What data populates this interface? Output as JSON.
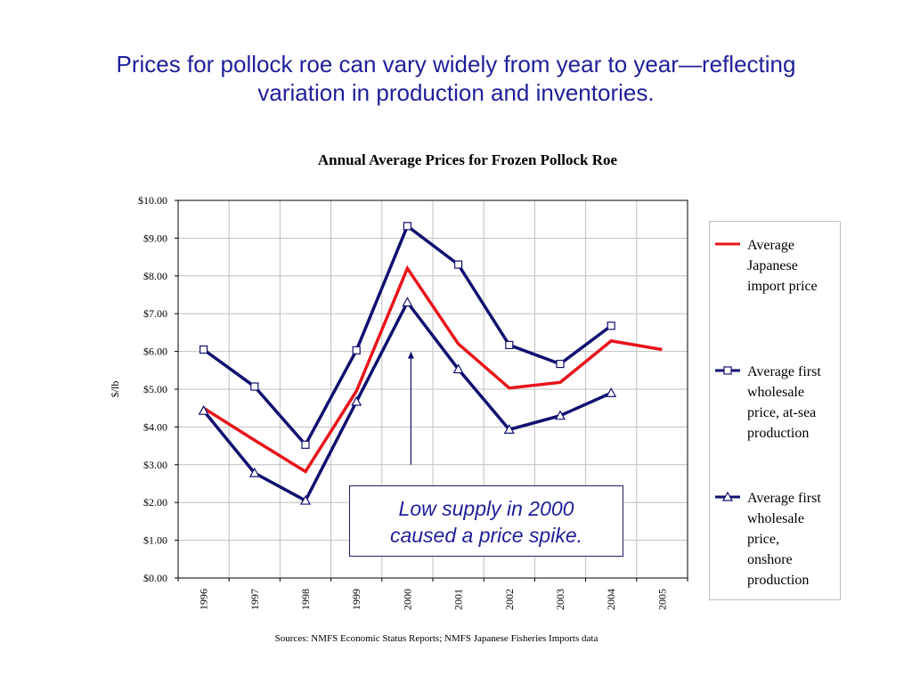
{
  "slide": {
    "title_lines": [
      "Prices for pollock roe can vary widely from year to year—reflecting",
      "variation in production and inventories."
    ],
    "callout_lines": [
      "Low supply in 2000",
      "caused a price spike."
    ],
    "sources": "Sources: NMFS  Economic Status Reports; NMFS Japanese Fisheries Imports data"
  },
  "colors": {
    "red": "#e8141b",
    "navy": "#101070",
    "title": "#1f1f99",
    "grid": "#c0c0c0"
  },
  "chart_data": {
    "type": "line",
    "title": "Annual Average Prices for Frozen Pollock Roe",
    "xlabel": "",
    "ylabel": "$/lb",
    "categories": [
      "1996",
      "1997",
      "1998",
      "1999",
      "2000",
      "2001",
      "2002",
      "2003",
      "2004",
      "2005"
    ],
    "ylim": [
      0,
      10
    ],
    "yticks": [
      "$0.00",
      "$1.00",
      "$2.00",
      "$3.00",
      "$4.00",
      "$5.00",
      "$6.00",
      "$7.00",
      "$8.00",
      "$9.00",
      "$10.00"
    ],
    "grid": true,
    "legend_position": "right",
    "series": [
      {
        "name": "Average Japanese import price",
        "legend_lines": [
          "Average",
          "Japanese",
          "import price"
        ],
        "color": "#e8141b",
        "marker": "none",
        "values": [
          4.5,
          3.65,
          2.82,
          4.95,
          8.2,
          6.2,
          5.03,
          5.18,
          6.28,
          6.05
        ]
      },
      {
        "name": "Average first wholesale price, at-sea production",
        "legend_lines": [
          "Average first",
          "wholesale",
          "price, at-sea",
          "production"
        ],
        "color": "#101070",
        "marker": "square",
        "values": [
          6.05,
          5.07,
          3.53,
          6.03,
          9.32,
          8.3,
          6.17,
          5.67,
          6.68,
          null
        ]
      },
      {
        "name": "Average first wholesale price, onshore production",
        "legend_lines": [
          "Average first",
          "wholesale",
          "price,",
          "onshore",
          "production"
        ],
        "color": "#101070",
        "marker": "triangle",
        "values": [
          4.43,
          2.78,
          2.05,
          4.67,
          7.3,
          5.53,
          3.93,
          4.3,
          4.9,
          null
        ]
      }
    ],
    "annotations": [
      {
        "type": "arrow",
        "category": "2000",
        "from_value": 3.0,
        "to_value": 6.0
      }
    ]
  }
}
